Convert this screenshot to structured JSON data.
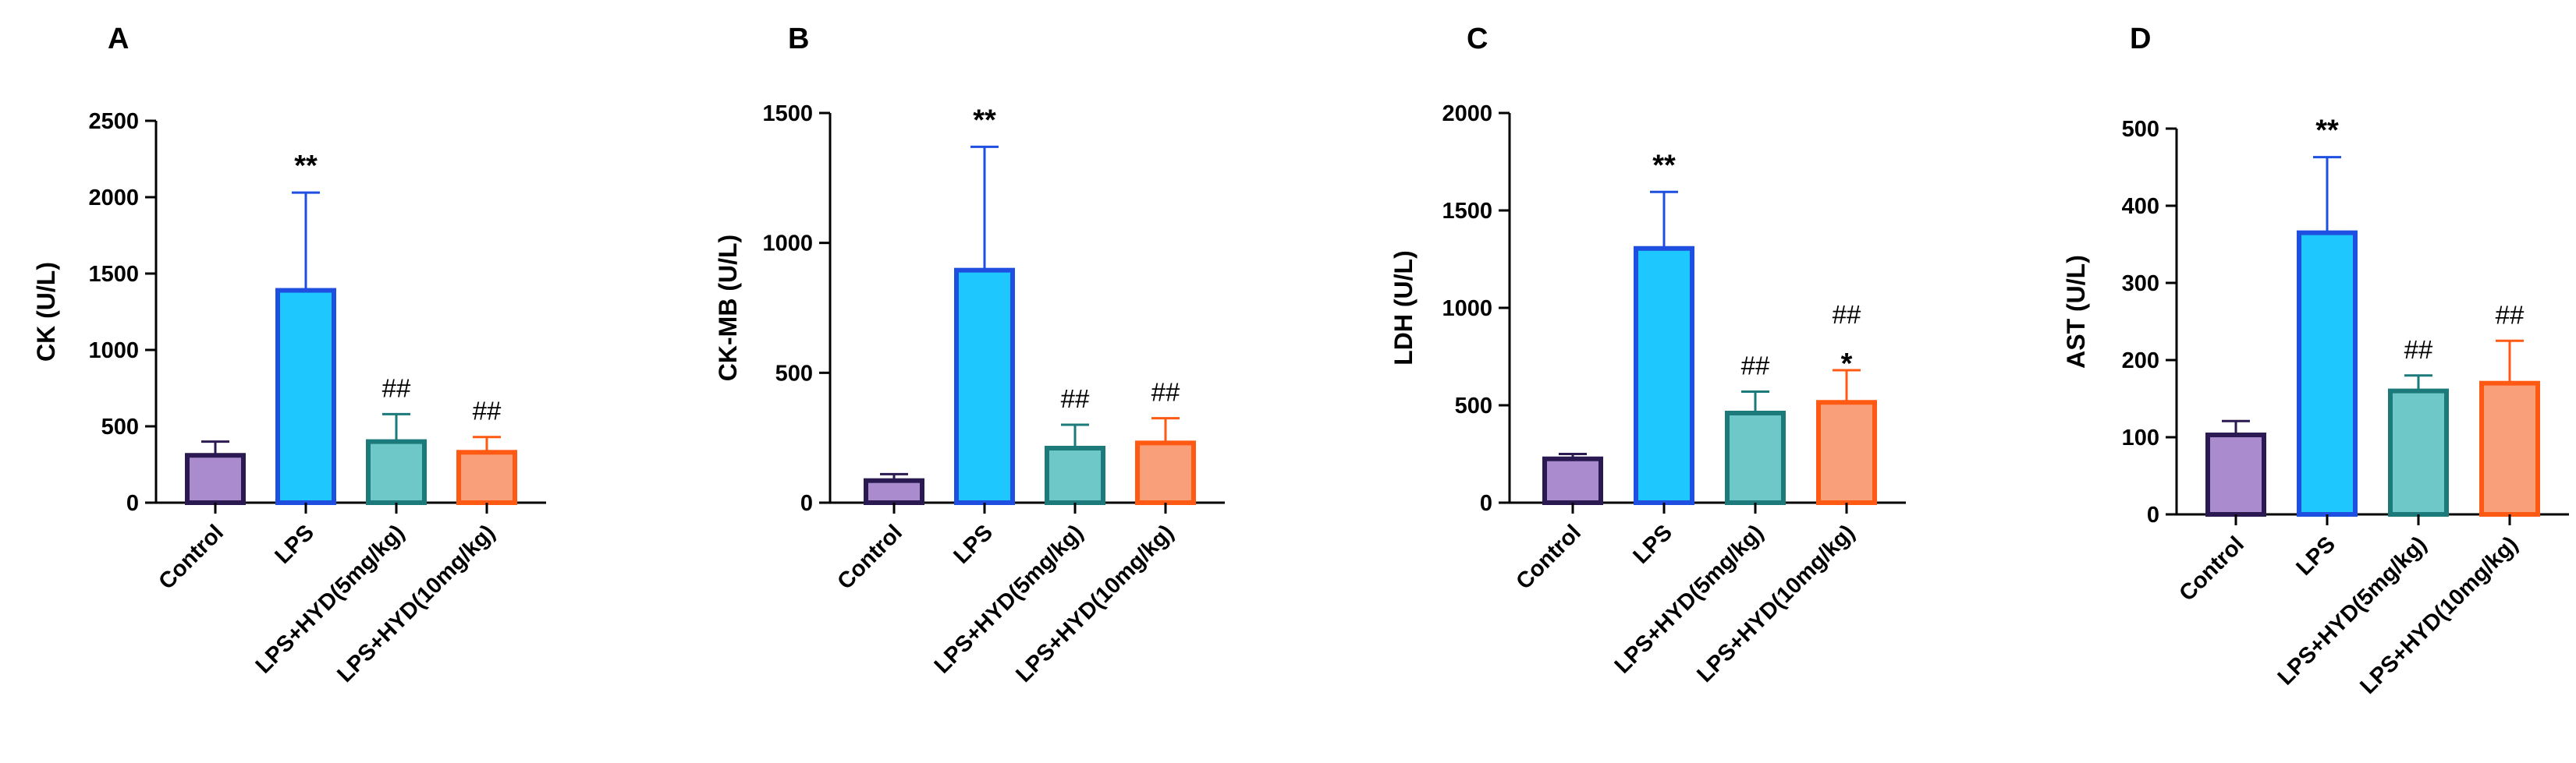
{
  "chart_data": [
    {
      "panel": "A",
      "type": "bar",
      "ylabel": "CK (U/L)",
      "ylim": [
        0,
        2500
      ],
      "yticks": [
        0,
        500,
        1000,
        1500,
        2000,
        2500
      ],
      "categories": [
        "Control",
        "LPS",
        "LPS+HYD(5mg/kg)",
        "LPS+HYD(10mg/kg)"
      ],
      "values": [
        310,
        1390,
        400,
        330
      ],
      "errors": [
        90,
        640,
        180,
        100
      ],
      "annotations": [
        [
          "",
          ""
        ],
        [
          "**",
          ""
        ],
        [
          "##",
          ""
        ],
        [
          "##",
          ""
        ]
      ]
    },
    {
      "panel": "B",
      "type": "bar",
      "ylabel": "CK-MB (U/L)",
      "ylim": [
        0,
        1500
      ],
      "yticks": [
        0,
        500,
        1000,
        1500
      ],
      "categories": [
        "Control",
        "LPS",
        "LPS+HYD(5mg/kg)",
        "LPS+HYD(10mg/kg)"
      ],
      "values": [
        85,
        895,
        210,
        230
      ],
      "errors": [
        25,
        475,
        90,
        95
      ],
      "annotations": [
        [
          "",
          ""
        ],
        [
          "**",
          ""
        ],
        [
          "##",
          ""
        ],
        [
          "##",
          ""
        ]
      ]
    },
    {
      "panel": "C",
      "type": "bar",
      "ylabel": "LDH (U/L)",
      "ylim": [
        0,
        2000
      ],
      "yticks": [
        0,
        500,
        1000,
        1500,
        2000
      ],
      "categories": [
        "Control",
        "LPS",
        "LPS+HYD(5mg/kg)",
        "LPS+HYD(10mg/kg)"
      ],
      "values": [
        225,
        1305,
        460,
        515
      ],
      "errors": [
        25,
        290,
        110,
        165
      ],
      "annotations": [
        [
          "",
          ""
        ],
        [
          "**",
          ""
        ],
        [
          "##",
          ""
        ],
        [
          "##",
          "*"
        ]
      ]
    },
    {
      "panel": "D",
      "type": "bar",
      "ylabel": "AST (U/L)",
      "ylim": [
        0,
        500
      ],
      "yticks": [
        0,
        100,
        200,
        300,
        400,
        500
      ],
      "categories": [
        "Control",
        "LPS",
        "LPS+HYD(5mg/kg)",
        "LPS+HYD(10mg/kg)"
      ],
      "values": [
        103,
        365,
        160,
        170
      ],
      "errors": [
        18,
        98,
        20,
        55
      ],
      "annotations": [
        [
          "",
          ""
        ],
        [
          "**",
          ""
        ],
        [
          "##",
          ""
        ],
        [
          "##",
          ""
        ]
      ]
    }
  ],
  "style": {
    "bar_fill": [
      "#a98bce",
      "#1ec8ff",
      "#6ec8c8",
      "#f9a07a"
    ],
    "bar_stroke": [
      "#2b1a52",
      "#1f4fe0",
      "#1c7a7a",
      "#ff5a14"
    ],
    "axis_color": "#000000"
  }
}
